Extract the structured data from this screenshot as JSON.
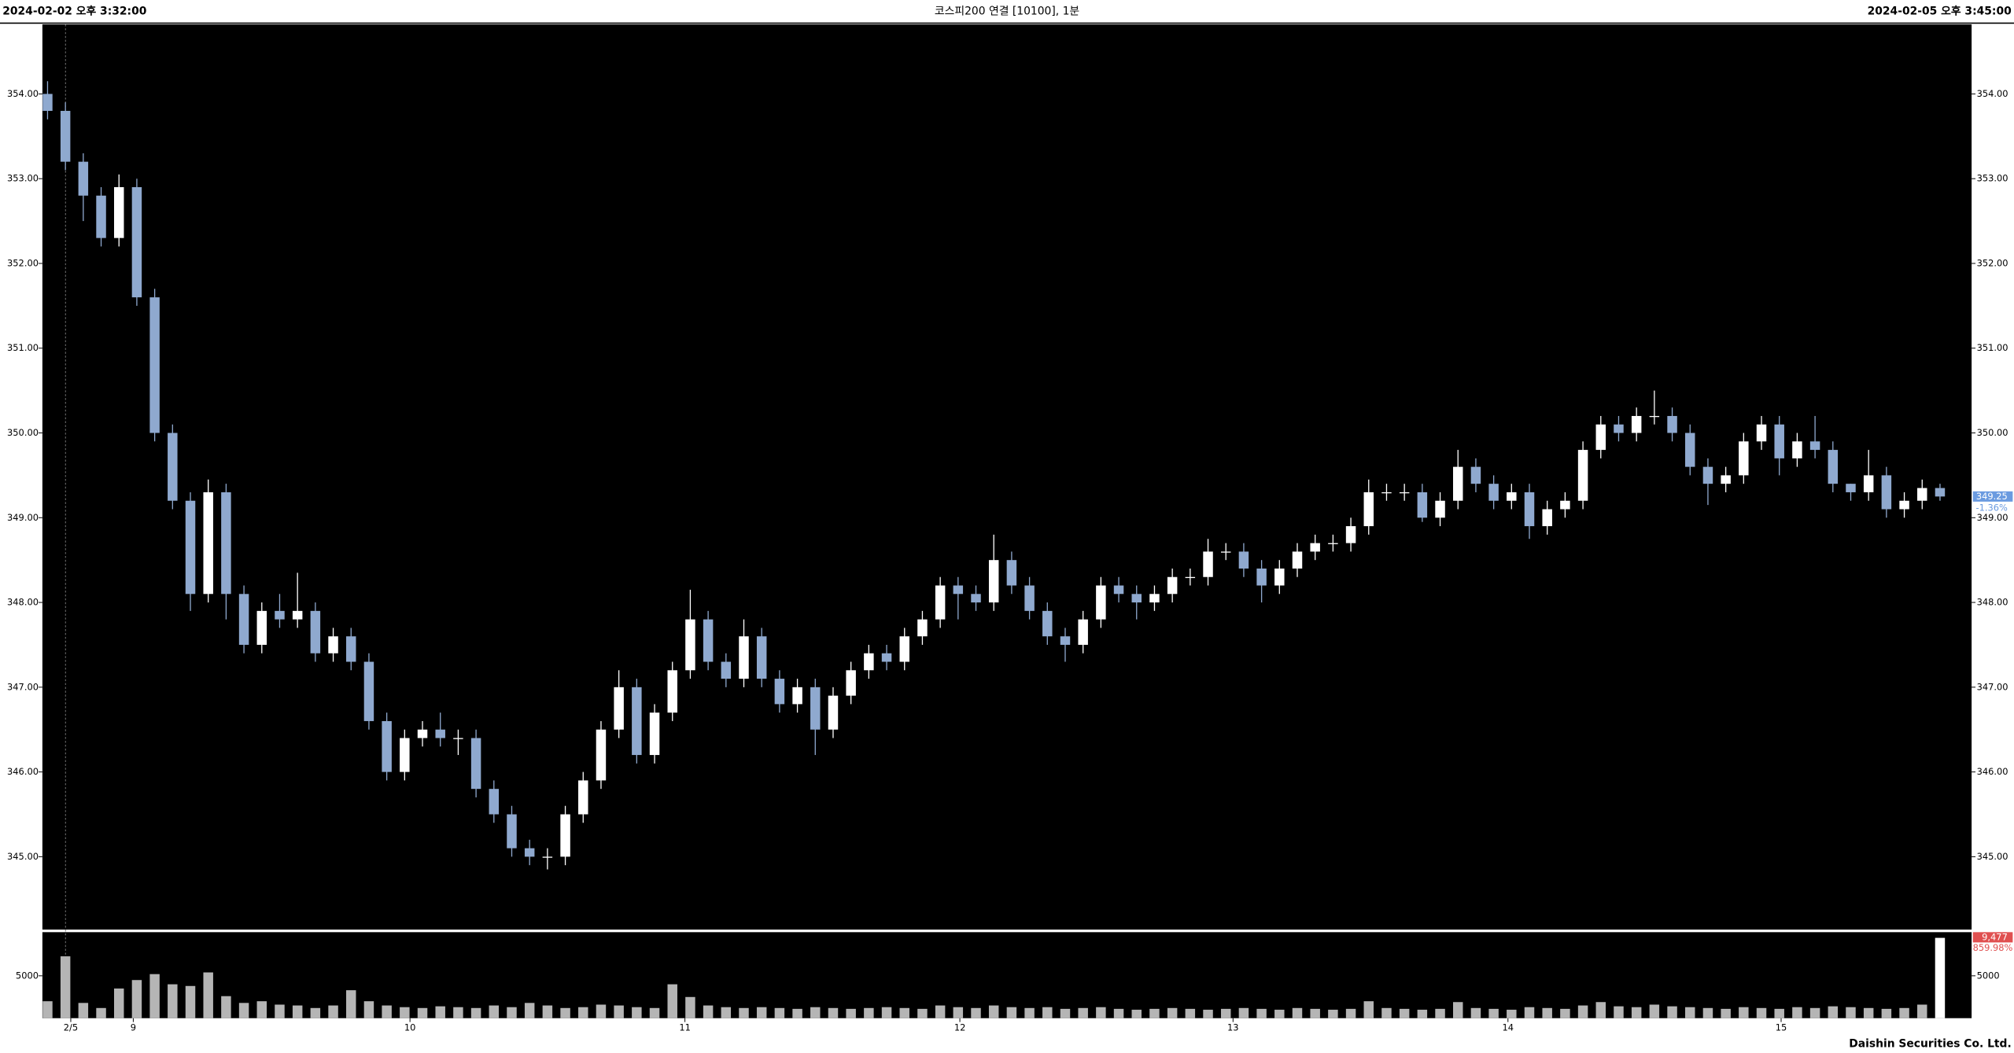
{
  "header": {
    "left": "2024-02-02 오후 3:32:00",
    "center": "코스피200 연결 [10100], 1분",
    "right": "2024-02-05 오후 3:45:00"
  },
  "footer": "Daishin Securities Co. Ltd.",
  "chart_data": [
    {
      "type": "candlestick",
      "up_color": "#ffffff",
      "down_color": "#8fa9cf",
      "open": [
        354.0,
        353.8,
        353.2,
        352.8,
        352.3,
        352.9,
        351.6,
        350.0,
        349.2,
        348.1,
        349.3,
        348.1,
        347.5,
        347.9,
        347.8,
        347.9,
        347.4,
        347.6,
        347.3,
        346.6,
        346.0,
        346.4,
        346.5,
        346.4,
        346.4,
        345.8,
        345.5,
        345.1,
        345.0,
        345.0,
        345.5,
        345.9,
        346.5,
        347.0,
        346.2,
        346.7,
        347.2,
        347.8,
        347.3,
        347.1,
        347.6,
        347.1,
        346.8,
        347.0,
        346.5,
        346.9,
        347.2,
        347.4,
        347.3,
        347.6,
        347.8,
        348.2,
        348.1,
        348.0,
        348.5,
        348.2,
        347.9,
        347.6,
        347.5,
        347.8,
        348.2,
        348.1,
        348.0,
        348.1,
        348.3,
        348.3,
        348.6,
        348.6,
        348.4,
        348.2,
        348.4,
        348.6,
        348.7,
        348.7,
        348.9,
        349.3,
        349.3,
        349.3,
        349.0,
        349.2,
        349.6,
        349.4,
        349.2,
        349.3,
        348.9,
        349.1,
        349.2,
        349.8,
        350.1,
        350.0,
        350.2,
        350.2,
        350.0,
        349.6,
        349.4,
        349.5,
        349.9,
        350.1,
        349.7,
        349.9,
        349.8,
        349.4,
        349.3,
        349.5,
        349.1,
        349.2,
        349.35
      ],
      "high": [
        354.15,
        353.9,
        353.3,
        352.9,
        353.05,
        353.0,
        351.7,
        350.1,
        349.3,
        349.45,
        349.4,
        348.2,
        348.0,
        348.1,
        348.35,
        348.0,
        347.7,
        347.7,
        347.4,
        346.7,
        346.5,
        346.6,
        346.7,
        346.5,
        346.5,
        345.9,
        345.6,
        345.2,
        345.1,
        345.6,
        346.0,
        346.6,
        347.2,
        347.1,
        346.8,
        347.3,
        348.15,
        347.9,
        347.4,
        347.8,
        347.7,
        347.2,
        347.1,
        347.1,
        347.0,
        347.3,
        347.5,
        347.5,
        347.7,
        347.9,
        348.3,
        348.3,
        348.2,
        348.8,
        348.6,
        348.3,
        348.0,
        347.7,
        347.9,
        348.3,
        348.3,
        348.2,
        348.2,
        348.4,
        348.4,
        348.75,
        348.7,
        348.7,
        348.5,
        348.5,
        348.7,
        348.8,
        348.8,
        349.0,
        349.45,
        349.4,
        349.4,
        349.4,
        349.3,
        349.8,
        349.7,
        349.5,
        349.4,
        349.4,
        349.2,
        349.3,
        349.9,
        350.2,
        350.2,
        350.3,
        350.5,
        350.3,
        350.1,
        349.7,
        349.6,
        350.0,
        350.2,
        350.2,
        350.0,
        350.2,
        349.9,
        349.4,
        349.8,
        349.6,
        349.3,
        349.45,
        349.4
      ],
      "low": [
        353.7,
        353.1,
        352.5,
        352.2,
        352.2,
        351.5,
        349.9,
        349.1,
        347.9,
        348.0,
        347.8,
        347.4,
        347.4,
        347.7,
        347.7,
        347.3,
        347.3,
        347.2,
        346.5,
        345.9,
        345.9,
        346.3,
        346.3,
        346.2,
        345.7,
        345.4,
        345.0,
        344.9,
        344.85,
        344.9,
        345.4,
        345.8,
        346.4,
        346.1,
        346.1,
        346.6,
        347.1,
        347.2,
        347.0,
        347.0,
        347.0,
        346.7,
        346.7,
        346.2,
        346.4,
        346.8,
        347.1,
        347.2,
        347.2,
        347.5,
        347.7,
        347.8,
        347.9,
        347.9,
        348.1,
        347.8,
        347.5,
        347.3,
        347.4,
        347.7,
        348.0,
        347.8,
        347.9,
        348.0,
        348.2,
        348.2,
        348.5,
        348.3,
        348.0,
        348.1,
        348.3,
        348.5,
        348.6,
        348.6,
        348.8,
        349.2,
        349.2,
        348.95,
        348.9,
        349.1,
        349.3,
        349.1,
        349.1,
        348.75,
        348.8,
        349.0,
        349.1,
        349.7,
        349.9,
        349.9,
        350.1,
        349.9,
        349.5,
        349.15,
        349.3,
        349.4,
        349.8,
        349.5,
        349.6,
        349.7,
        349.3,
        349.2,
        349.2,
        349.0,
        349.0,
        349.1,
        349.2
      ],
      "close": [
        353.8,
        353.2,
        352.8,
        352.3,
        352.9,
        351.6,
        350.0,
        349.2,
        348.1,
        349.3,
        348.1,
        347.5,
        347.9,
        347.8,
        347.9,
        347.4,
        347.6,
        347.3,
        346.6,
        346.0,
        346.4,
        346.5,
        346.4,
        346.4,
        345.8,
        345.5,
        345.1,
        345.0,
        345.0,
        345.5,
        345.9,
        346.5,
        347.0,
        346.2,
        346.7,
        347.2,
        347.8,
        347.3,
        347.1,
        347.6,
        347.1,
        346.8,
        347.0,
        346.5,
        346.9,
        347.2,
        347.4,
        347.3,
        347.6,
        347.8,
        348.2,
        348.1,
        348.0,
        348.5,
        348.2,
        347.9,
        347.6,
        347.5,
        347.8,
        348.2,
        348.1,
        348.0,
        348.1,
        348.3,
        348.3,
        348.6,
        348.6,
        348.4,
        348.2,
        348.4,
        348.6,
        348.7,
        348.7,
        348.9,
        349.3,
        349.3,
        349.3,
        349.0,
        349.2,
        349.6,
        349.4,
        349.2,
        349.3,
        348.9,
        349.1,
        349.2,
        349.8,
        350.1,
        350.0,
        350.2,
        350.2,
        350.0,
        349.6,
        349.4,
        349.5,
        349.9,
        350.1,
        349.7,
        349.9,
        349.8,
        349.4,
        349.3,
        349.5,
        349.1,
        349.2,
        349.35,
        349.25
      ],
      "xlim": [
        -0.29,
        107.77
      ],
      "xticks": [
        {
          "value": 1.3,
          "label": "2/5"
        },
        {
          "value": 4.8,
          "label": "9"
        },
        {
          "value": 20.3,
          "label": "10"
        },
        {
          "value": 35.7,
          "label": "11"
        },
        {
          "value": 51.1,
          "label": "12"
        },
        {
          "value": 66.4,
          "label": "13"
        },
        {
          "value": 81.8,
          "label": "14"
        },
        {
          "value": 97.1,
          "label": "15"
        }
      ],
      "ylim": [
        344.14,
        354.82
      ],
      "yticks": [
        {
          "value": 345,
          "label": "345.00"
        },
        {
          "value": 346,
          "label": "346.00"
        },
        {
          "value": 347,
          "label": "347.00"
        },
        {
          "value": 348,
          "label": "348.00"
        },
        {
          "value": 349,
          "label": "349.00"
        },
        {
          "value": 350,
          "label": "350.00"
        },
        {
          "value": 351,
          "label": "351.00"
        },
        {
          "value": 352,
          "label": "352.00"
        },
        {
          "value": 353,
          "label": "353.00"
        },
        {
          "value": 354,
          "label": "354.00"
        }
      ],
      "grid": false,
      "annotations": {
        "last_price": "349.25",
        "change": "-1.36%",
        "tag_color": "#6b9be0"
      }
    },
    {
      "type": "bar",
      "color": "#b5b5b5",
      "values": [
        2000,
        7300,
        1800,
        1200,
        3500,
        4500,
        5200,
        4000,
        3800,
        5400,
        2600,
        1800,
        2000,
        1600,
        1500,
        1200,
        1500,
        3300,
        2000,
        1500,
        1300,
        1200,
        1400,
        1300,
        1200,
        1500,
        1300,
        1800,
        1500,
        1200,
        1300,
        1600,
        1500,
        1300,
        1200,
        4000,
        2500,
        1500,
        1300,
        1200,
        1300,
        1200,
        1100,
        1300,
        1200,
        1100,
        1200,
        1300,
        1200,
        1100,
        1500,
        1300,
        1200,
        1500,
        1300,
        1200,
        1300,
        1100,
        1200,
        1300,
        1100,
        1000,
        1100,
        1200,
        1100,
        1000,
        1100,
        1200,
        1100,
        1000,
        1200,
        1100,
        1000,
        1100,
        2000,
        1200,
        1100,
        1000,
        1100,
        1900,
        1200,
        1100,
        1000,
        1300,
        1200,
        1100,
        1500,
        1900,
        1400,
        1300,
        1600,
        1400,
        1300,
        1200,
        1100,
        1300,
        1200,
        1100,
        1300,
        1200,
        1400,
        1300,
        1200,
        1100,
        1200,
        1600,
        9477
      ],
      "ylim": [
        0,
        10150
      ],
      "yticks": [
        5000
      ],
      "grid": false,
      "annotations": {
        "last_volume": "9,477",
        "ratio": "859.98%",
        "tag_color": "#e05050"
      }
    }
  ]
}
